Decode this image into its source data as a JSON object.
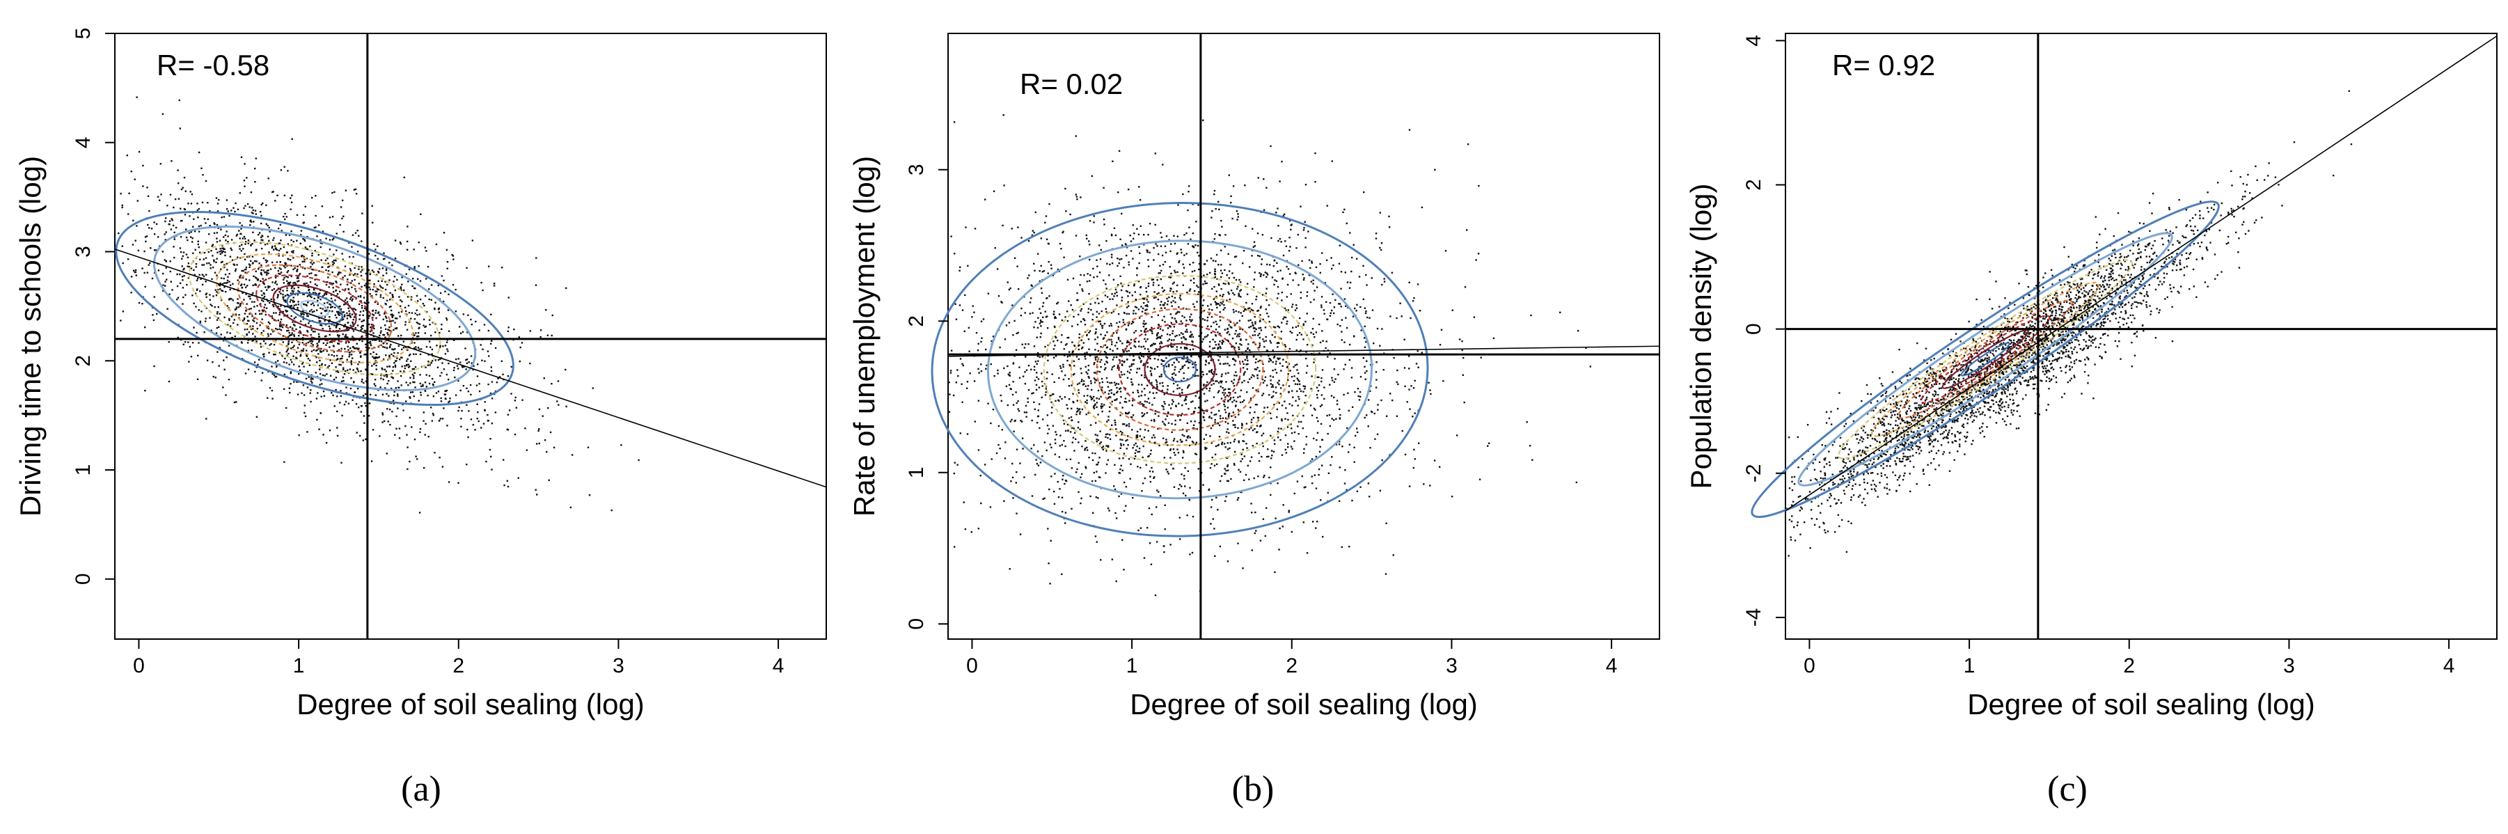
{
  "chart_data": [
    {
      "type": "scatter",
      "panel": "(a)",
      "r_label": "R= -0.58",
      "xlabel": "Degree of soil sealing (log)",
      "ylabel": "Driving time to schools (log)",
      "xlim": [
        -0.15,
        4.3
      ],
      "ylim": [
        -0.55,
        5.0
      ],
      "xticks": [
        "0",
        "1",
        "2",
        "3",
        "4"
      ],
      "yticks": [
        "0",
        "1",
        "2",
        "3",
        "4",
        "5"
      ],
      "xtick_values": [
        0,
        1,
        2,
        3,
        4
      ],
      "ytick_values": [
        0,
        1,
        2,
        3,
        4,
        5
      ],
      "mean_x": 1.43,
      "mean_y": 2.2,
      "regression": {
        "intercept": 2.95,
        "slope": -0.49
      },
      "cloud": {
        "center_x": 1.1,
        "center_y": 2.45,
        "sd_x": 0.58,
        "sd_y": 0.55,
        "corr": -0.58,
        "n": 2600
      },
      "density_peak": [
        1.1,
        2.48
      ],
      "density_contours": [
        {
          "rx": 1.3,
          "ry": 0.68,
          "color": "#4f7fb8",
          "dash": "none"
        },
        {
          "rx": 1.05,
          "ry": 0.6,
          "color": "#7fa8d2",
          "dash": "none"
        },
        {
          "rx": 0.82,
          "ry": 0.5,
          "color": "#d7c873",
          "dash": "6,4"
        },
        {
          "rx": 0.64,
          "ry": 0.42,
          "color": "#e8a850",
          "dash": "6,4"
        },
        {
          "rx": 0.5,
          "ry": 0.34,
          "color": "#d96a35",
          "dash": "6,4"
        },
        {
          "rx": 0.38,
          "ry": 0.26,
          "color": "#b52a2a",
          "dash": "6,4"
        },
        {
          "rx": 0.27,
          "ry": 0.18,
          "color": "#7a1e2c",
          "dash": "none"
        },
        {
          "rx": 0.18,
          "ry": 0.12,
          "color": "#3c6fb0",
          "dash": "none"
        },
        {
          "rx": 0.09,
          "ry": 0.06,
          "color": "#9ec8e8",
          "dash": "none"
        }
      ]
    },
    {
      "type": "scatter",
      "panel": "(b)",
      "r_label": "R= 0.02",
      "xlabel": "Degree of soil sealing (log)",
      "ylabel": "Rate of unemployment (log)",
      "xlim": [
        -0.15,
        4.3
      ],
      "ylim": [
        -0.1,
        3.9
      ],
      "xticks": [
        "0",
        "1",
        "2",
        "3",
        "4"
      ],
      "yticks": [
        "0",
        "1",
        "2",
        "3"
      ],
      "xtick_values": [
        0,
        1,
        2,
        3,
        4
      ],
      "ytick_values": [
        0,
        1,
        2,
        3
      ],
      "mean_x": 1.43,
      "mean_y": 1.78,
      "regression": {
        "intercept": 1.77,
        "slope": 0.015
      },
      "cloud": {
        "center_x": 1.3,
        "center_y": 1.72,
        "sd_x": 0.68,
        "sd_y": 0.5,
        "corr": 0.02,
        "n": 3200
      },
      "density_peak": [
        1.3,
        1.68
      ],
      "density_contours": [
        {
          "rx": 1.55,
          "ry": 1.1,
          "color": "#4f7fb8",
          "dash": "none"
        },
        {
          "rx": 1.2,
          "ry": 0.85,
          "color": "#7fa8d2",
          "dash": "none"
        },
        {
          "rx": 0.85,
          "ry": 0.62,
          "color": "#d7c873",
          "dash": "6,4"
        },
        {
          "rx": 0.68,
          "ry": 0.5,
          "color": "#e8a850",
          "dash": "6,4"
        },
        {
          "rx": 0.52,
          "ry": 0.4,
          "color": "#d96a35",
          "dash": "6,4"
        },
        {
          "rx": 0.38,
          "ry": 0.3,
          "color": "#b52a2a",
          "dash": "6,4"
        },
        {
          "rx": 0.22,
          "ry": 0.17,
          "color": "#7a1e2c",
          "dash": "none"
        },
        {
          "rx": 0.1,
          "ry": 0.08,
          "color": "#3c6fb0",
          "dash": "none"
        }
      ]
    },
    {
      "type": "scatter",
      "panel": "(c)",
      "r_label": "R= 0.92",
      "xlabel": "Degree of soil sealing (log)",
      "ylabel": "Population density (log)",
      "xlim": [
        -0.15,
        4.3
      ],
      "ylim": [
        -4.3,
        4.1
      ],
      "xticks": [
        "0",
        "1",
        "2",
        "3",
        "4"
      ],
      "yticks": [
        "-4",
        "-2",
        "0",
        "2",
        "4"
      ],
      "xtick_values": [
        0,
        1,
        2,
        3,
        4
      ],
      "ytick_values": [
        -4,
        -2,
        0,
        2,
        4
      ],
      "mean_x": 1.43,
      "mean_y": 0.0,
      "regression": {
        "intercept": -2.3,
        "slope": 1.48
      },
      "cloud": {
        "center_x": 1.2,
        "center_y": -0.5,
        "sd_x": 0.62,
        "sd_y": 0.95,
        "corr": 0.92,
        "n": 3200
      },
      "density_peak": [
        1.1,
        -0.42
      ],
      "density_contours": [
        {
          "rx": 1.75,
          "ry": 0.45,
          "color": "#4f7fb8",
          "dash": "none"
        },
        {
          "rx": 1.4,
          "ry": 0.36,
          "color": "#7fa8d2",
          "dash": "none"
        },
        {
          "rx": 1.1,
          "ry": 0.29,
          "color": "#d7c873",
          "dash": "6,4"
        },
        {
          "rx": 0.85,
          "ry": 0.24,
          "color": "#e8a850",
          "dash": "6,4"
        },
        {
          "rx": 0.65,
          "ry": 0.19,
          "color": "#d96a35",
          "dash": "6,4"
        },
        {
          "rx": 0.48,
          "ry": 0.15,
          "color": "#b52a2a",
          "dash": "6,4"
        },
        {
          "rx": 0.32,
          "ry": 0.1,
          "color": "#7a1e2c",
          "dash": "none"
        },
        {
          "rx": 0.18,
          "ry": 0.06,
          "color": "#3c6fb0",
          "dash": "none"
        }
      ]
    }
  ]
}
